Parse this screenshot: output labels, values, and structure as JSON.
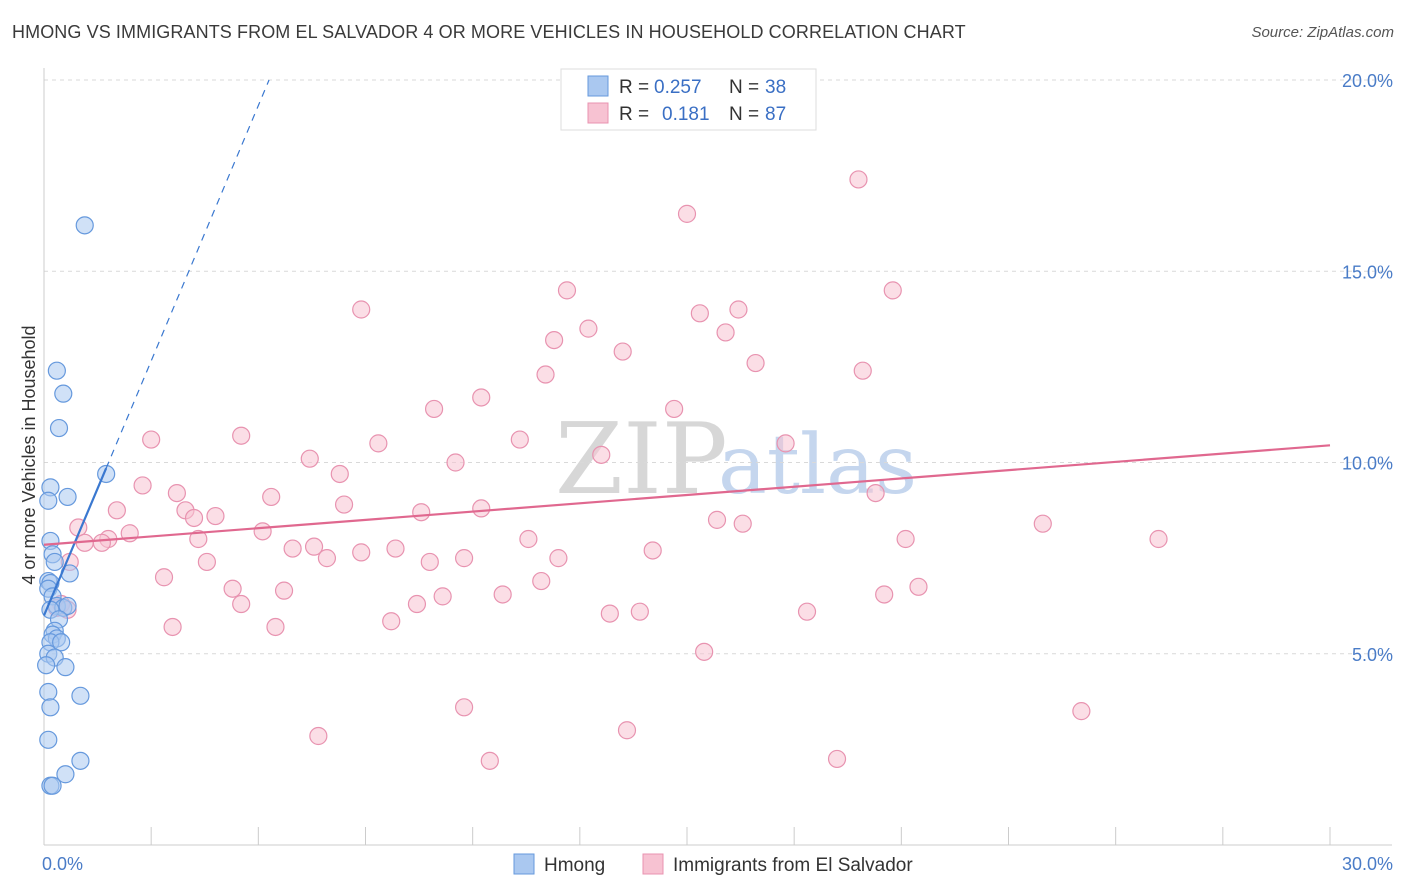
{
  "title": "HMONG VS IMMIGRANTS FROM EL SALVADOR 4 OR MORE VEHICLES IN HOUSEHOLD CORRELATION CHART",
  "source": "Source: ZipAtlas.com",
  "watermark": {
    "zip": "ZIP",
    "atlas": "atlas"
  },
  "colors": {
    "hmong_fill": "#aac8f0",
    "hmong_stroke": "#6699dd",
    "hmong_line": "#3a78d0",
    "salvador_fill": "#f7c2d2",
    "salvador_stroke": "#e893b0",
    "salvador_line": "#e0688f",
    "tick_label": "#4a7cc7",
    "grid": "#d9d9d9"
  },
  "legend": {
    "rows": [
      {
        "r_label": "R =",
        "r_value": "0.257",
        "n_label": "N =",
        "n_value": "38"
      },
      {
        "r_label": "R =",
        "r_value": "0.181",
        "n_label": "N =",
        "n_value": "87"
      }
    ]
  },
  "chart_data": {
    "type": "scatter",
    "title": "HMONG VS IMMIGRANTS FROM EL SALVADOR 4 OR MORE VEHICLES IN HOUSEHOLD CORRELATION CHART",
    "xlabel": "",
    "ylabel": "4 or more Vehicles in Household",
    "xlim": [
      0,
      30
    ],
    "ylim": [
      0,
      20
    ],
    "x_tick_labels": [
      {
        "value": 0,
        "label": "0.0%"
      },
      {
        "value": 30,
        "label": "30.0%"
      }
    ],
    "y_tick_labels": [
      {
        "value": 5,
        "label": "5.0%"
      },
      {
        "value": 10,
        "label": "10.0%"
      },
      {
        "value": 15,
        "label": "15.0%"
      },
      {
        "value": 20,
        "label": "20.0%"
      }
    ],
    "grid": true,
    "legend_position": "top-center",
    "series": [
      {
        "name": "Hmong",
        "r": 0.257,
        "n": 38,
        "trend": {
          "x0": 0.0,
          "y0": 6.0,
          "x1": 1.45,
          "y1": 9.85,
          "dash_x1": 5.25,
          "dash_y1": 20.0
        },
        "points": [
          [
            0.95,
            16.2
          ],
          [
            0.3,
            12.4
          ],
          [
            0.45,
            11.8
          ],
          [
            0.35,
            10.9
          ],
          [
            1.45,
            9.7
          ],
          [
            0.15,
            9.35
          ],
          [
            0.55,
            9.1
          ],
          [
            0.1,
            9.0
          ],
          [
            0.15,
            7.95
          ],
          [
            0.2,
            7.6
          ],
          [
            0.25,
            7.4
          ],
          [
            0.6,
            7.1
          ],
          [
            0.1,
            6.9
          ],
          [
            0.15,
            6.85
          ],
          [
            0.1,
            6.7
          ],
          [
            0.2,
            6.5
          ],
          [
            0.3,
            6.25
          ],
          [
            0.45,
            6.2
          ],
          [
            0.55,
            6.25
          ],
          [
            0.15,
            6.15
          ],
          [
            0.35,
            5.9
          ],
          [
            0.25,
            5.6
          ],
          [
            0.2,
            5.5
          ],
          [
            0.3,
            5.4
          ],
          [
            0.15,
            5.3
          ],
          [
            0.4,
            5.3
          ],
          [
            0.1,
            5.0
          ],
          [
            0.25,
            4.9
          ],
          [
            0.5,
            4.65
          ],
          [
            0.05,
            4.7
          ],
          [
            0.1,
            4.0
          ],
          [
            0.85,
            3.9
          ],
          [
            0.15,
            3.6
          ],
          [
            0.1,
            2.75
          ],
          [
            0.85,
            2.2
          ],
          [
            0.5,
            1.85
          ],
          [
            0.15,
            1.55
          ],
          [
            0.2,
            1.55
          ]
        ]
      },
      {
        "name": "Immigrants from El Salvador",
        "r": 0.181,
        "n": 87,
        "trend": {
          "x0": 0.0,
          "y0": 7.85,
          "x1": 30.0,
          "y1": 10.45
        },
        "points": [
          [
            19.0,
            17.4
          ],
          [
            15.0,
            16.5
          ],
          [
            12.2,
            14.5
          ],
          [
            19.8,
            14.5
          ],
          [
            7.4,
            14.0
          ],
          [
            15.3,
            13.9
          ],
          [
            16.2,
            14.0
          ],
          [
            12.7,
            13.5
          ],
          [
            15.9,
            13.4
          ],
          [
            11.9,
            13.2
          ],
          [
            13.5,
            12.9
          ],
          [
            16.6,
            12.6
          ],
          [
            19.1,
            12.4
          ],
          [
            11.7,
            12.3
          ],
          [
            10.2,
            11.7
          ],
          [
            9.1,
            11.4
          ],
          [
            14.7,
            11.4
          ],
          [
            2.5,
            10.6
          ],
          [
            4.6,
            10.7
          ],
          [
            11.1,
            10.6
          ],
          [
            7.8,
            10.5
          ],
          [
            17.3,
            10.5
          ],
          [
            6.2,
            10.1
          ],
          [
            13.0,
            10.2
          ],
          [
            9.6,
            10.0
          ],
          [
            6.9,
            9.7
          ],
          [
            2.3,
            9.4
          ],
          [
            3.1,
            9.2
          ],
          [
            5.3,
            9.1
          ],
          [
            19.4,
            9.2
          ],
          [
            7.0,
            8.9
          ],
          [
            3.3,
            8.75
          ],
          [
            1.7,
            8.75
          ],
          [
            3.5,
            8.55
          ],
          [
            4.0,
            8.6
          ],
          [
            8.8,
            8.7
          ],
          [
            10.2,
            8.8
          ],
          [
            15.7,
            8.5
          ],
          [
            16.3,
            8.4
          ],
          [
            23.3,
            8.4
          ],
          [
            0.8,
            8.3
          ],
          [
            5.1,
            8.2
          ],
          [
            2.0,
            8.15
          ],
          [
            0.95,
            7.9
          ],
          [
            1.5,
            8.0
          ],
          [
            1.35,
            7.9
          ],
          [
            3.6,
            8.0
          ],
          [
            11.3,
            8.0
          ],
          [
            20.1,
            8.0
          ],
          [
            26.0,
            8.0
          ],
          [
            5.8,
            7.75
          ],
          [
            6.3,
            7.8
          ],
          [
            8.2,
            7.75
          ],
          [
            7.4,
            7.65
          ],
          [
            14.2,
            7.7
          ],
          [
            9.8,
            7.5
          ],
          [
            6.6,
            7.5
          ],
          [
            9.0,
            7.4
          ],
          [
            12.0,
            7.5
          ],
          [
            0.6,
            7.4
          ],
          [
            3.8,
            7.4
          ],
          [
            2.8,
            7.0
          ],
          [
            11.6,
            6.9
          ],
          [
            4.4,
            6.7
          ],
          [
            5.6,
            6.65
          ],
          [
            20.4,
            6.75
          ],
          [
            10.7,
            6.55
          ],
          [
            9.3,
            6.5
          ],
          [
            19.6,
            6.55
          ],
          [
            8.7,
            6.3
          ],
          [
            4.6,
            6.3
          ],
          [
            0.4,
            6.3
          ],
          [
            0.3,
            6.2
          ],
          [
            0.55,
            6.15
          ],
          [
            13.2,
            6.05
          ],
          [
            13.9,
            6.1
          ],
          [
            17.8,
            6.1
          ],
          [
            8.1,
            5.85
          ],
          [
            3.0,
            5.7
          ],
          [
            5.4,
            5.7
          ],
          [
            15.4,
            5.05
          ],
          [
            9.8,
            3.6
          ],
          [
            24.2,
            3.5
          ],
          [
            13.6,
            3.0
          ],
          [
            6.4,
            2.85
          ],
          [
            10.4,
            2.2
          ],
          [
            18.5,
            2.25
          ]
        ]
      }
    ]
  }
}
